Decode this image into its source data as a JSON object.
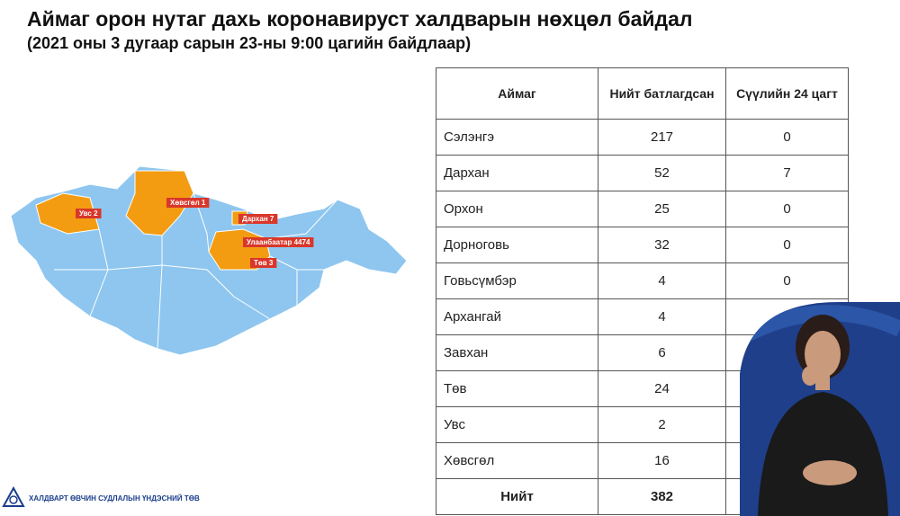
{
  "header": {
    "title": "Аймаг орон нутаг дахь коронавируст халдварын нөхцөл байдал",
    "subtitle": "(2021 оны 3 дугаар сарын 23-ны 9:00 цагийн байдлаар)"
  },
  "map": {
    "labels": [
      "Увс 2",
      "Хөвсгөл 1",
      "Дархан 7",
      "Улаанбаатар 4474",
      "Төв 3"
    ]
  },
  "table": {
    "header": [
      "Аймаг",
      "Нийт батлагдсан",
      "Сүүлийн 24 цагт"
    ],
    "rows": [
      [
        "Сэлэнгэ",
        217,
        0
      ],
      [
        "Дархан",
        52,
        7
      ],
      [
        "Орхон",
        25,
        0
      ],
      [
        "Дорноговь",
        32,
        0
      ],
      [
        "Говьсүмбэр",
        4,
        0
      ],
      [
        "Архангай",
        4,
        null
      ],
      [
        "Завхан",
        6,
        null
      ],
      [
        "Төв",
        24,
        null
      ],
      [
        "Увс",
        2,
        null
      ],
      [
        "Хөвсгөл",
        16,
        null
      ]
    ],
    "total": [
      "Нийт",
      382,
      null
    ]
  },
  "footer": {
    "org": "ХАЛДВАРТ ӨВЧИН СУДЛАЛЫН ҮНДЭСНИЙ ТӨВ"
  }
}
